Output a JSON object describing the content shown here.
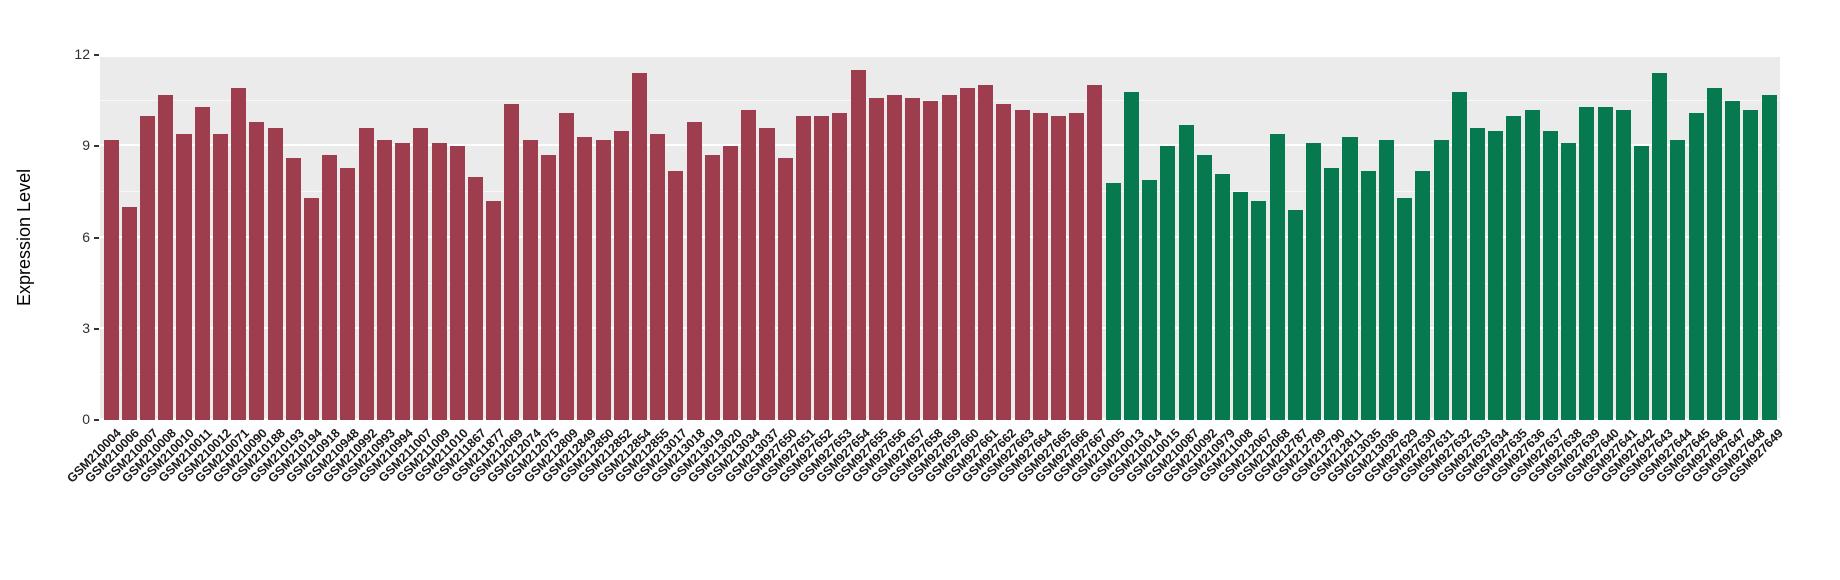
{
  "chart_data": {
    "type": "bar",
    "title": "",
    "xlabel": "",
    "ylabel": "Expression Level",
    "ylim": [
      0,
      12
    ],
    "yticks": [
      0,
      3,
      6,
      9,
      12
    ],
    "minor_gridlines": [
      1.5,
      4.5,
      7.5,
      10.5
    ],
    "panel_background": "#ebebeb",
    "gridline_color": "#ffffff",
    "legend": "none",
    "groups": [
      {
        "name": "group-red",
        "color": "#9e3d4d"
      },
      {
        "name": "group-green",
        "color": "#06794e"
      }
    ],
    "bars": [
      {
        "label": "GSM210004",
        "value": 9.2,
        "group": 0
      },
      {
        "label": "GSM210006",
        "value": 7.0,
        "group": 0
      },
      {
        "label": "GSM210007",
        "value": 10.0,
        "group": 0
      },
      {
        "label": "GSM210008",
        "value": 10.7,
        "group": 0
      },
      {
        "label": "GSM210010",
        "value": 9.4,
        "group": 0
      },
      {
        "label": "GSM210011",
        "value": 10.3,
        "group": 0
      },
      {
        "label": "GSM210012",
        "value": 9.4,
        "group": 0
      },
      {
        "label": "GSM210071",
        "value": 10.9,
        "group": 0
      },
      {
        "label": "GSM210090",
        "value": 9.8,
        "group": 0
      },
      {
        "label": "GSM210188",
        "value": 9.6,
        "group": 0
      },
      {
        "label": "GSM210193",
        "value": 8.6,
        "group": 0
      },
      {
        "label": "GSM210194",
        "value": 7.3,
        "group": 0
      },
      {
        "label": "GSM210918",
        "value": 8.7,
        "group": 0
      },
      {
        "label": "GSM210948",
        "value": 8.3,
        "group": 0
      },
      {
        "label": "GSM210992",
        "value": 9.6,
        "group": 0
      },
      {
        "label": "GSM210993",
        "value": 9.2,
        "group": 0
      },
      {
        "label": "GSM210994",
        "value": 9.1,
        "group": 0
      },
      {
        "label": "GSM211007",
        "value": 9.6,
        "group": 0
      },
      {
        "label": "GSM211009",
        "value": 9.1,
        "group": 0
      },
      {
        "label": "GSM211010",
        "value": 9.0,
        "group": 0
      },
      {
        "label": "GSM211867",
        "value": 8.0,
        "group": 0
      },
      {
        "label": "GSM211877",
        "value": 7.2,
        "group": 0
      },
      {
        "label": "GSM212069",
        "value": 10.4,
        "group": 0
      },
      {
        "label": "GSM212074",
        "value": 9.2,
        "group": 0
      },
      {
        "label": "GSM212075",
        "value": 8.7,
        "group": 0
      },
      {
        "label": "GSM212809",
        "value": 10.1,
        "group": 0
      },
      {
        "label": "GSM212849",
        "value": 9.3,
        "group": 0
      },
      {
        "label": "GSM212850",
        "value": 9.2,
        "group": 0
      },
      {
        "label": "GSM212852",
        "value": 9.5,
        "group": 0
      },
      {
        "label": "GSM212854",
        "value": 11.4,
        "group": 0
      },
      {
        "label": "GSM212855",
        "value": 9.4,
        "group": 0
      },
      {
        "label": "GSM213017",
        "value": 8.2,
        "group": 0
      },
      {
        "label": "GSM213018",
        "value": 9.8,
        "group": 0
      },
      {
        "label": "GSM213019",
        "value": 8.7,
        "group": 0
      },
      {
        "label": "GSM213020",
        "value": 9.0,
        "group": 0
      },
      {
        "label": "GSM213034",
        "value": 10.2,
        "group": 0
      },
      {
        "label": "GSM213037",
        "value": 9.6,
        "group": 0
      },
      {
        "label": "GSM927650",
        "value": 8.6,
        "group": 0
      },
      {
        "label": "GSM927651",
        "value": 10.0,
        "group": 0
      },
      {
        "label": "GSM927652",
        "value": 10.0,
        "group": 0
      },
      {
        "label": "GSM927653",
        "value": 10.1,
        "group": 0
      },
      {
        "label": "GSM927654",
        "value": 11.5,
        "group": 0
      },
      {
        "label": "GSM927655",
        "value": 10.6,
        "group": 0
      },
      {
        "label": "GSM927656",
        "value": 10.7,
        "group": 0
      },
      {
        "label": "GSM927657",
        "value": 10.6,
        "group": 0
      },
      {
        "label": "GSM927658",
        "value": 10.5,
        "group": 0
      },
      {
        "label": "GSM927659",
        "value": 10.7,
        "group": 0
      },
      {
        "label": "GSM927660",
        "value": 10.9,
        "group": 0
      },
      {
        "label": "GSM927661",
        "value": 11.0,
        "group": 0
      },
      {
        "label": "GSM927662",
        "value": 10.4,
        "group": 0
      },
      {
        "label": "GSM927663",
        "value": 10.2,
        "group": 0
      },
      {
        "label": "GSM927664",
        "value": 10.1,
        "group": 0
      },
      {
        "label": "GSM927665",
        "value": 10.0,
        "group": 0
      },
      {
        "label": "GSM927666",
        "value": 10.1,
        "group": 0
      },
      {
        "label": "GSM927667",
        "value": 11.0,
        "group": 0
      },
      {
        "label": "GSM210005",
        "value": 7.8,
        "group": 1
      },
      {
        "label": "GSM210013",
        "value": 10.8,
        "group": 1
      },
      {
        "label": "GSM210014",
        "value": 7.9,
        "group": 1
      },
      {
        "label": "GSM210015",
        "value": 9.0,
        "group": 1
      },
      {
        "label": "GSM210087",
        "value": 9.7,
        "group": 1
      },
      {
        "label": "GSM210092",
        "value": 8.7,
        "group": 1
      },
      {
        "label": "GSM210979",
        "value": 8.1,
        "group": 1
      },
      {
        "label": "GSM211008",
        "value": 7.5,
        "group": 1
      },
      {
        "label": "GSM212067",
        "value": 7.2,
        "group": 1
      },
      {
        "label": "GSM212068",
        "value": 9.4,
        "group": 1
      },
      {
        "label": "GSM212787",
        "value": 6.9,
        "group": 1
      },
      {
        "label": "GSM212789",
        "value": 9.1,
        "group": 1
      },
      {
        "label": "GSM212790",
        "value": 8.3,
        "group": 1
      },
      {
        "label": "GSM212811",
        "value": 9.3,
        "group": 1
      },
      {
        "label": "GSM213035",
        "value": 8.2,
        "group": 1
      },
      {
        "label": "GSM213036",
        "value": 9.2,
        "group": 1
      },
      {
        "label": "GSM927629",
        "value": 7.3,
        "group": 1
      },
      {
        "label": "GSM927630",
        "value": 8.2,
        "group": 1
      },
      {
        "label": "GSM927631",
        "value": 9.2,
        "group": 1
      },
      {
        "label": "GSM927632",
        "value": 10.8,
        "group": 1
      },
      {
        "label": "GSM927633",
        "value": 9.6,
        "group": 1
      },
      {
        "label": "GSM927634",
        "value": 9.5,
        "group": 1
      },
      {
        "label": "GSM927635",
        "value": 10.0,
        "group": 1
      },
      {
        "label": "GSM927636",
        "value": 10.2,
        "group": 1
      },
      {
        "label": "GSM927637",
        "value": 9.5,
        "group": 1
      },
      {
        "label": "GSM927638",
        "value": 9.1,
        "group": 1
      },
      {
        "label": "GSM927639",
        "value": 10.3,
        "group": 1
      },
      {
        "label": "GSM927640",
        "value": 10.3,
        "group": 1
      },
      {
        "label": "GSM927641",
        "value": 10.2,
        "group": 1
      },
      {
        "label": "GSM927642",
        "value": 9.0,
        "group": 1
      },
      {
        "label": "GSM927643",
        "value": 11.4,
        "group": 1
      },
      {
        "label": "GSM927644",
        "value": 9.2,
        "group": 1
      },
      {
        "label": "GSM927645",
        "value": 10.1,
        "group": 1
      },
      {
        "label": "GSM927646",
        "value": 10.9,
        "group": 1
      },
      {
        "label": "GSM927647",
        "value": 10.5,
        "group": 1
      },
      {
        "label": "GSM927648",
        "value": 10.2,
        "group": 1
      },
      {
        "label": "GSM927649",
        "value": 10.7,
        "group": 1
      }
    ]
  }
}
